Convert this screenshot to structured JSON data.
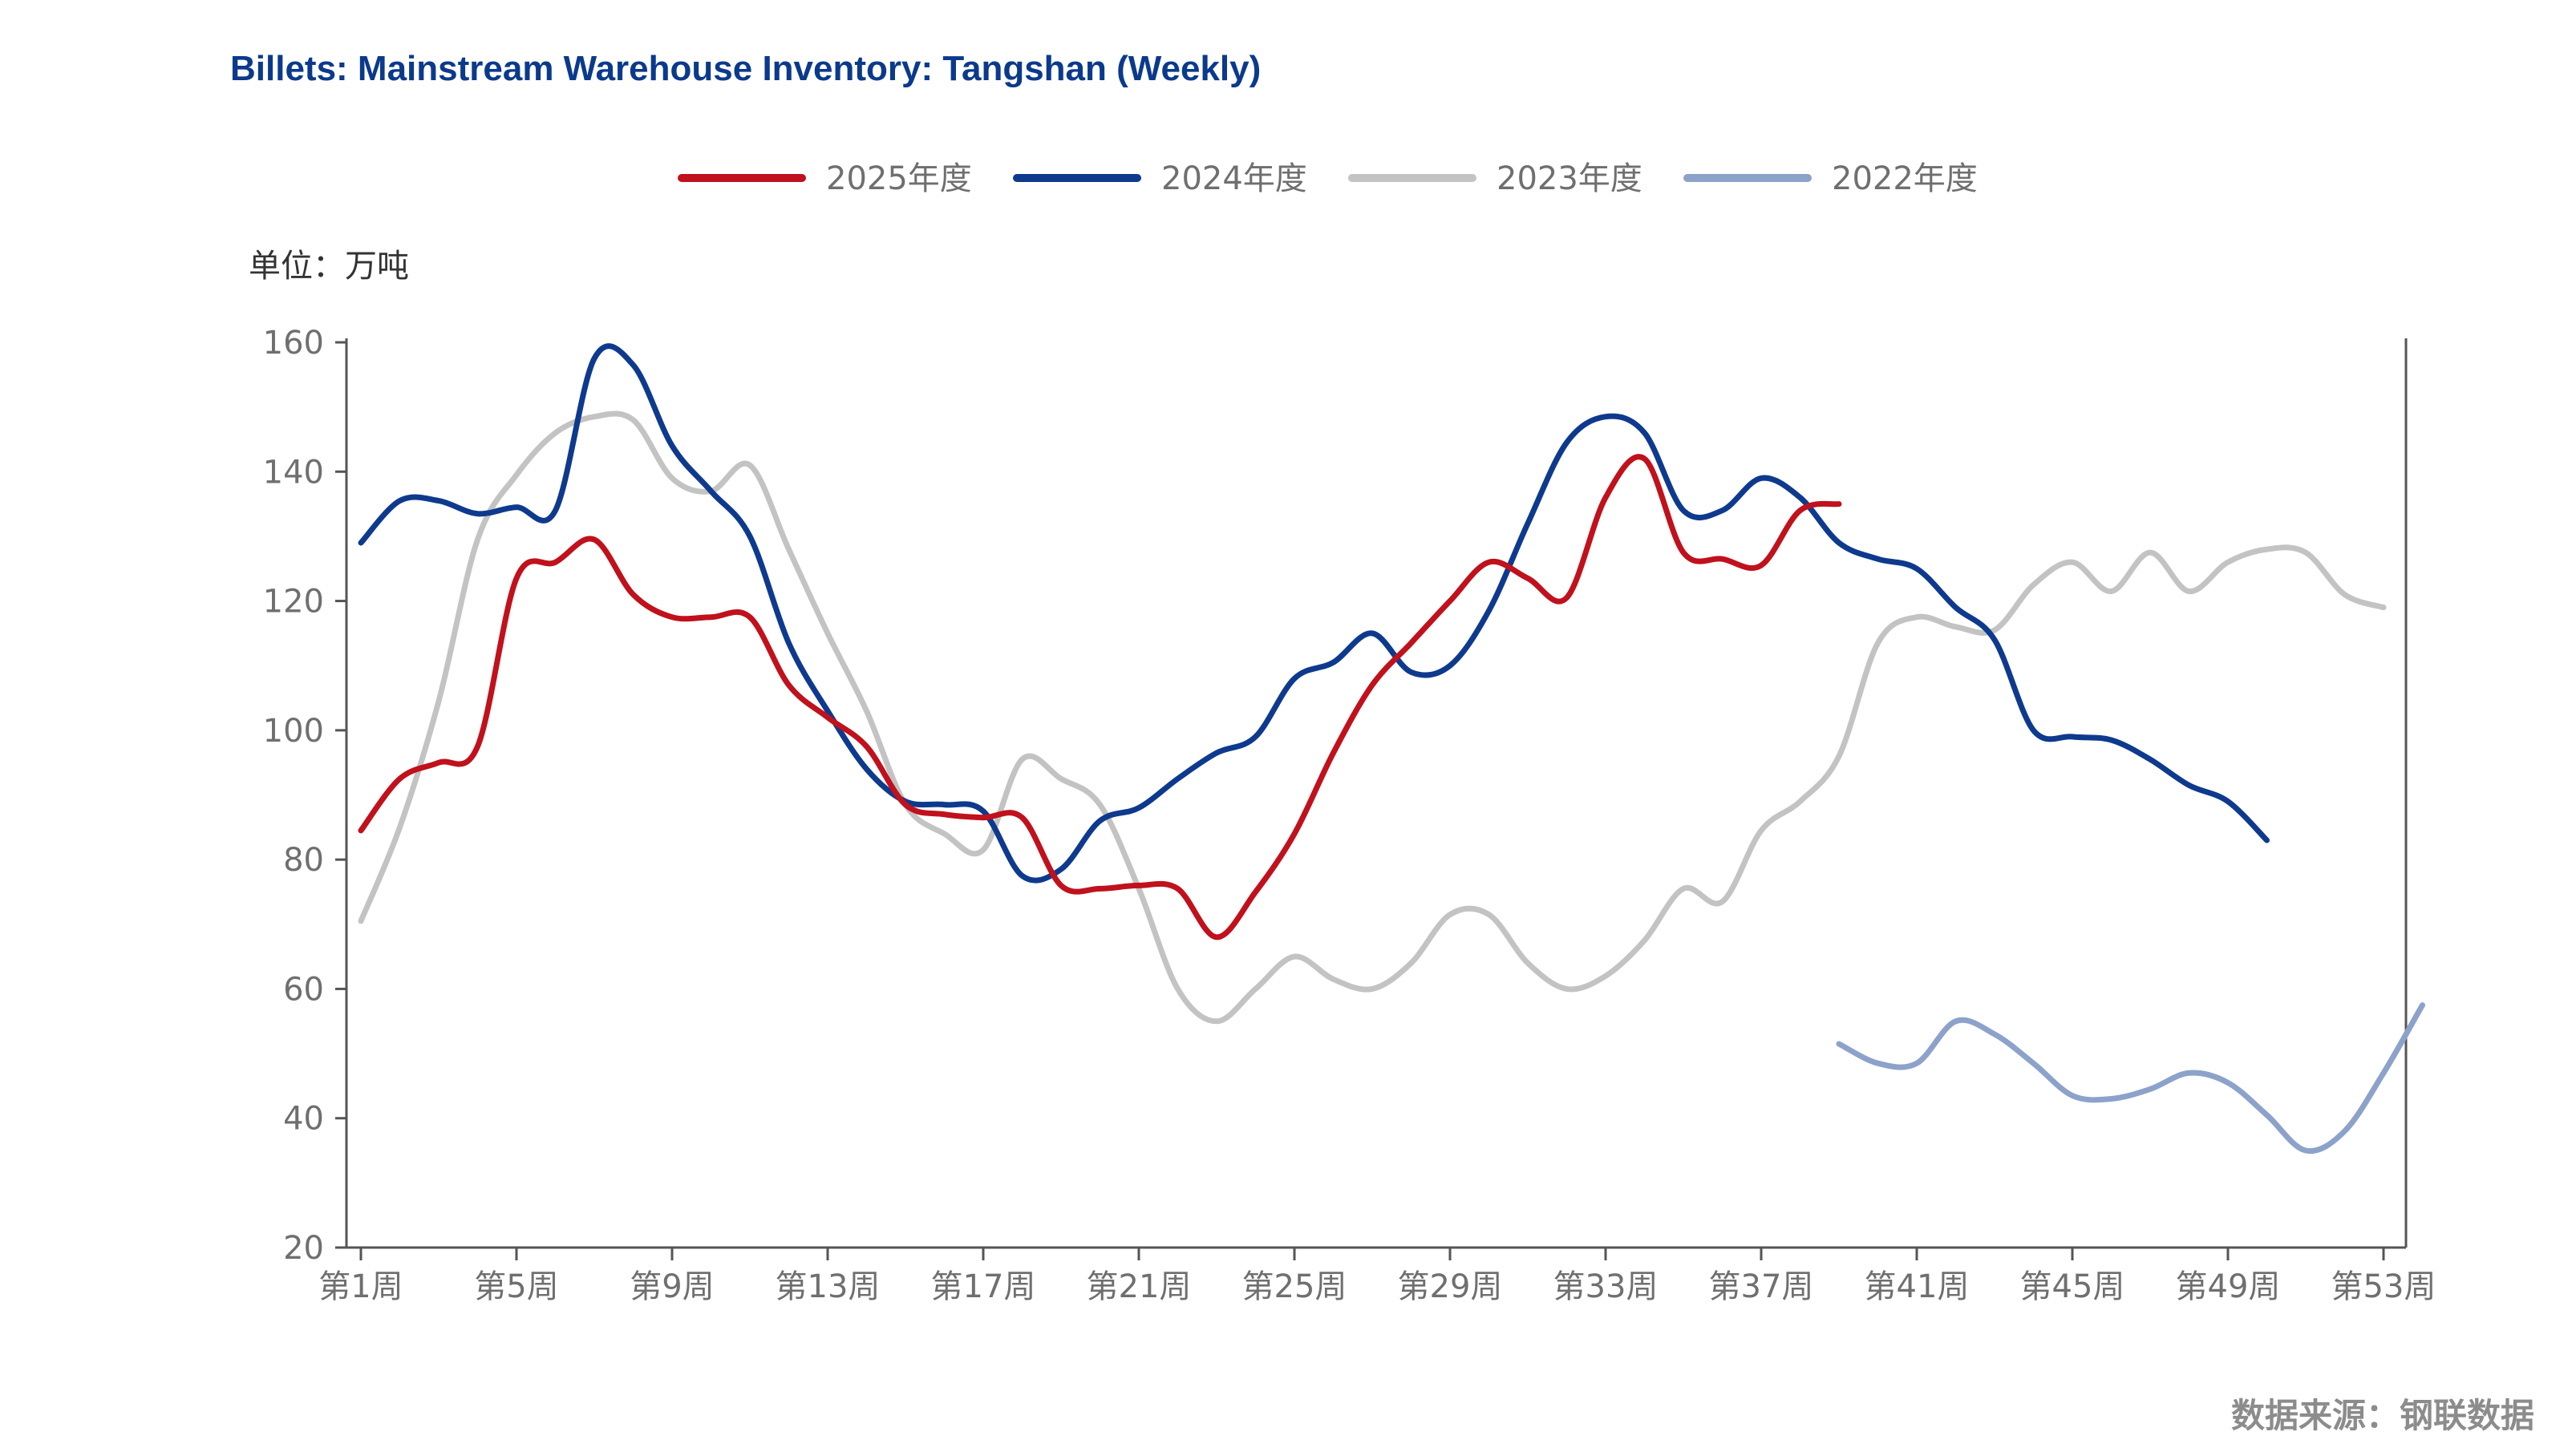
{
  "chart_data": {
    "type": "line",
    "title": "Billets: Mainstream Warehouse Inventory: Tangshan (Weekly)",
    "unit_label": "单位：万吨",
    "source": "数据来源：钢联数据",
    "ylim": [
      20,
      160
    ],
    "y_ticks": [
      "20",
      "40",
      "60",
      "80",
      "100",
      "120",
      "140",
      "160"
    ],
    "x_range": [
      1,
      53
    ],
    "x_ticks": [
      {
        "week": 1,
        "label": "第1周"
      },
      {
        "week": 5,
        "label": "第5周"
      },
      {
        "week": 9,
        "label": "第9周"
      },
      {
        "week": 13,
        "label": "第13周"
      },
      {
        "week": 17,
        "label": "第17周"
      },
      {
        "week": 21,
        "label": "第21周"
      },
      {
        "week": 25,
        "label": "第25周"
      },
      {
        "week": 29,
        "label": "第29周"
      },
      {
        "week": 33,
        "label": "第33周"
      },
      {
        "week": 37,
        "label": "第37周"
      },
      {
        "week": 41,
        "label": "第41周"
      },
      {
        "week": 45,
        "label": "第45周"
      },
      {
        "week": 49,
        "label": "第49周"
      },
      {
        "week": 53,
        "label": "第53周"
      }
    ],
    "legend_position": "top-center",
    "grid": false,
    "series": [
      {
        "name": "2025年度",
        "color": "#c0111c",
        "points": [
          [
            1,
            84.5
          ],
          [
            2,
            92.5
          ],
          [
            3,
            95
          ],
          [
            4,
            97.5
          ],
          [
            5,
            123.5
          ],
          [
            6,
            126
          ],
          [
            7,
            129.5
          ],
          [
            8,
            121
          ],
          [
            9,
            117.5
          ],
          [
            10,
            117.5
          ],
          [
            11,
            117.5
          ],
          [
            12,
            107
          ],
          [
            13,
            102
          ],
          [
            14,
            97.5
          ],
          [
            15,
            88.5
          ],
          [
            16,
            87
          ],
          [
            17,
            86.5
          ],
          [
            18,
            86.5
          ],
          [
            19,
            76
          ],
          [
            20,
            75.5
          ],
          [
            21,
            76
          ],
          [
            22,
            75.5
          ],
          [
            23,
            68
          ],
          [
            24,
            75
          ],
          [
            25,
            84
          ],
          [
            26,
            96.5
          ],
          [
            27,
            107
          ],
          [
            28,
            113.5
          ],
          [
            29,
            120
          ],
          [
            30,
            126
          ],
          [
            31,
            123.5
          ],
          [
            32,
            120.5
          ],
          [
            33,
            136
          ],
          [
            34,
            142
          ],
          [
            35,
            127.5
          ],
          [
            36,
            126.5
          ],
          [
            37,
            125.5
          ],
          [
            38,
            134
          ],
          [
            39,
            135
          ]
        ]
      },
      {
        "name": "2024年度",
        "color": "#0e3a8e",
        "points": [
          [
            1,
            129
          ],
          [
            2,
            135.5
          ],
          [
            3,
            135.5
          ],
          [
            4,
            133.5
          ],
          [
            5,
            134.5
          ],
          [
            6,
            134
          ],
          [
            7,
            157.5
          ],
          [
            8,
            156.5
          ],
          [
            9,
            144
          ],
          [
            10,
            137
          ],
          [
            11,
            130
          ],
          [
            12,
            113.5
          ],
          [
            13,
            103
          ],
          [
            14,
            94
          ],
          [
            15,
            89
          ],
          [
            16,
            88.5
          ],
          [
            17,
            87.5
          ],
          [
            18,
            77.5
          ],
          [
            19,
            78.5
          ],
          [
            20,
            86
          ],
          [
            21,
            88
          ],
          [
            22,
            92.5
          ],
          [
            23,
            96.5
          ],
          [
            24,
            99
          ],
          [
            25,
            108
          ],
          [
            26,
            110.5
          ],
          [
            27,
            115
          ],
          [
            28,
            109
          ],
          [
            29,
            110
          ],
          [
            30,
            118.5
          ],
          [
            31,
            132
          ],
          [
            32,
            144.5
          ],
          [
            33,
            148.5
          ],
          [
            34,
            146
          ],
          [
            35,
            134
          ],
          [
            36,
            134
          ],
          [
            37,
            139
          ],
          [
            38,
            136
          ],
          [
            39,
            129
          ],
          [
            40,
            126.5
          ],
          [
            41,
            125
          ],
          [
            42,
            119
          ],
          [
            43,
            114
          ],
          [
            44,
            100
          ],
          [
            45,
            99
          ],
          [
            46,
            98.5
          ],
          [
            47,
            95.5
          ],
          [
            48,
            91.5
          ],
          [
            49,
            89
          ],
          [
            50,
            83
          ]
        ]
      },
      {
        "name": "2023年度",
        "color": "#c3c3c3",
        "points": [
          [
            1,
            70.5
          ],
          [
            2,
            85
          ],
          [
            3,
            104.5
          ],
          [
            4,
            129.5
          ],
          [
            5,
            139.5
          ],
          [
            6,
            146
          ],
          [
            7,
            148.5
          ],
          [
            8,
            148
          ],
          [
            9,
            139
          ],
          [
            10,
            137
          ],
          [
            11,
            141
          ],
          [
            12,
            128
          ],
          [
            13,
            115
          ],
          [
            14,
            103
          ],
          [
            15,
            88.5
          ],
          [
            16,
            84
          ],
          [
            17,
            81.5
          ],
          [
            18,
            95.5
          ],
          [
            19,
            92.5
          ],
          [
            20,
            88.5
          ],
          [
            21,
            75.5
          ],
          [
            22,
            60
          ],
          [
            23,
            55
          ],
          [
            24,
            60
          ],
          [
            25,
            65
          ],
          [
            26,
            61.5
          ],
          [
            27,
            60
          ],
          [
            28,
            64
          ],
          [
            29,
            71.5
          ],
          [
            30,
            71.5
          ],
          [
            31,
            64
          ],
          [
            32,
            60
          ],
          [
            33,
            62
          ],
          [
            34,
            67.5
          ],
          [
            35,
            75.5
          ],
          [
            36,
            73.5
          ],
          [
            37,
            84.5
          ],
          [
            38,
            89
          ],
          [
            39,
            96
          ],
          [
            40,
            113.5
          ],
          [
            41,
            117.5
          ],
          [
            42,
            116
          ],
          [
            43,
            115.5
          ],
          [
            44,
            122.5
          ],
          [
            45,
            126
          ],
          [
            46,
            121.5
          ],
          [
            47,
            127.5
          ],
          [
            48,
            121.5
          ],
          [
            49,
            126
          ],
          [
            50,
            128
          ],
          [
            51,
            127.5
          ],
          [
            52,
            121
          ],
          [
            53,
            119
          ]
        ]
      },
      {
        "name": "2022年度",
        "color": "#8da2ca",
        "points": [
          [
            39,
            51.5
          ],
          [
            40,
            48.5
          ],
          [
            41,
            48.5
          ],
          [
            42,
            55
          ],
          [
            43,
            53
          ],
          [
            44,
            48.5
          ],
          [
            45,
            43.5
          ],
          [
            46,
            43
          ],
          [
            47,
            44.5
          ],
          [
            48,
            47
          ],
          [
            49,
            45.5
          ],
          [
            50,
            40.5
          ],
          [
            51,
            35
          ],
          [
            52,
            38
          ],
          [
            53,
            47
          ],
          [
            54,
            57.5
          ]
        ]
      }
    ]
  }
}
